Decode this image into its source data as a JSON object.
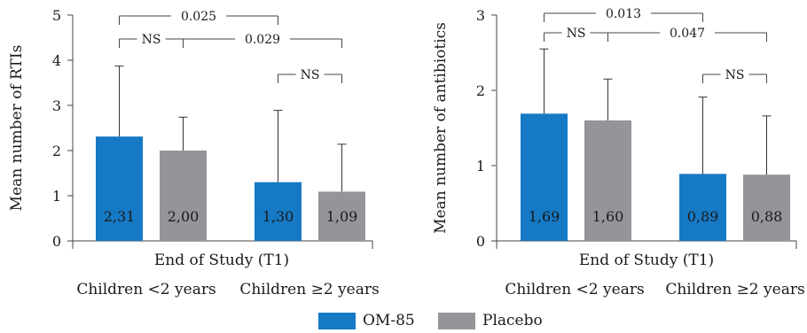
{
  "legend": {
    "items": [
      {
        "label": "OM-85",
        "color": "#1679C5"
      },
      {
        "label": "Placebo",
        "color": "#939598"
      }
    ]
  },
  "chart_data": [
    {
      "type": "bar",
      "ylabel": "Mean number of RTIs",
      "xlabel": "End of Study (T1)",
      "groups": [
        "Children <2 years",
        "Children ≥2 years"
      ],
      "ylim": [
        0,
        5
      ],
      "yticks": [
        "0",
        "1",
        "2",
        "3",
        "4",
        "5"
      ],
      "bars": [
        {
          "group": 0,
          "series": "OM-85",
          "value": 2.31,
          "label": "2,31",
          "error": 3.87
        },
        {
          "group": 0,
          "series": "Placebo",
          "value": 2.0,
          "label": "2,00",
          "error": 2.74
        },
        {
          "group": 1,
          "series": "OM-85",
          "value": 1.3,
          "label": "1,30",
          "error": 2.89
        },
        {
          "group": 1,
          "series": "Placebo",
          "value": 1.09,
          "label": "1,09",
          "error": 2.14
        }
      ],
      "comparisons": [
        {
          "label": "NS",
          "from": 0,
          "to": 1
        },
        {
          "label": "0.025",
          "from": 0,
          "to": 2
        },
        {
          "label": "0.029",
          "from": 1,
          "to": 3
        },
        {
          "label": "NS",
          "from": 2,
          "to": 3
        }
      ]
    },
    {
      "type": "bar",
      "ylabel": "Mean number of antibiotics",
      "xlabel": "End of Study (T1)",
      "groups": [
        "Children <2 years",
        "Children ≥2 years"
      ],
      "ylim": [
        0,
        3
      ],
      "yticks": [
        "0",
        "1",
        "2",
        "3"
      ],
      "bars": [
        {
          "group": 0,
          "series": "OM-85",
          "value": 1.69,
          "label": "1,69",
          "error": 2.55
        },
        {
          "group": 0,
          "series": "Placebo",
          "value": 1.6,
          "label": "1,60",
          "error": 2.15
        },
        {
          "group": 1,
          "series": "OM-85",
          "value": 0.89,
          "label": "0,89",
          "error": 1.91
        },
        {
          "group": 1,
          "series": "Placebo",
          "value": 0.88,
          "label": "0,88",
          "error": 1.66
        }
      ],
      "comparisons": [
        {
          "label": "NS",
          "from": 0,
          "to": 1
        },
        {
          "label": "0.013",
          "from": 0,
          "to": 2
        },
        {
          "label": "0.047",
          "from": 1,
          "to": 3
        },
        {
          "label": "NS",
          "from": 2,
          "to": 3
        }
      ]
    }
  ]
}
